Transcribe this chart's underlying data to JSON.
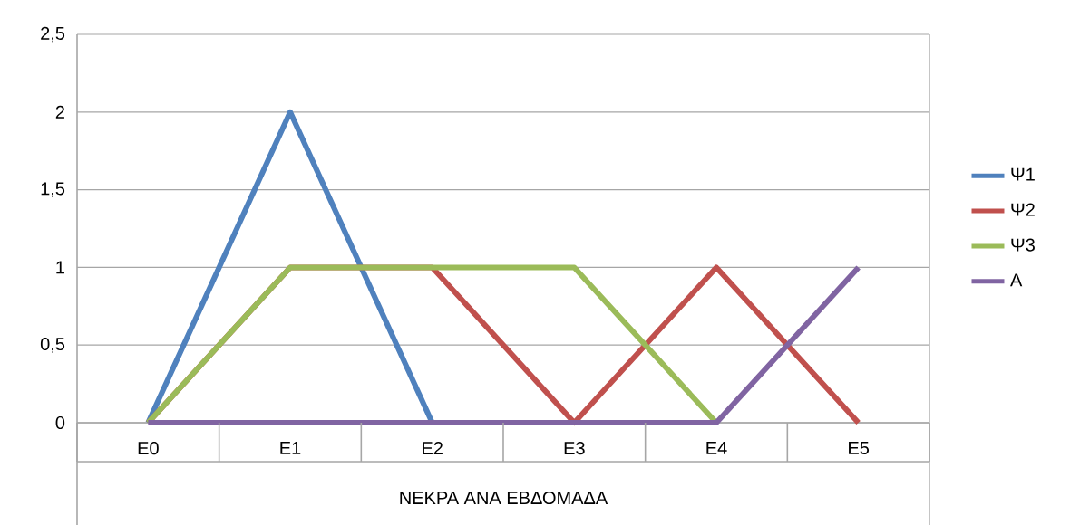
{
  "chart_data": {
    "type": "line",
    "xlabel": "ΝΕΚΡΑ ΑΝΑ ΕΒΔΟΜΑΔΑ",
    "categories": [
      "E0",
      "E1",
      "E2",
      "E3",
      "E4",
      "E5"
    ],
    "series": [
      {
        "name": "Ψ1",
        "color": "#4f81bd",
        "values": [
          0,
          2,
          0,
          null,
          null,
          null
        ]
      },
      {
        "name": "Ψ2",
        "color": "#c0504d",
        "values": [
          0,
          1,
          1,
          0,
          1,
          0
        ]
      },
      {
        "name": "Ψ3",
        "color": "#9bbb59",
        "values": [
          0,
          1,
          1,
          1,
          0,
          null
        ]
      },
      {
        "name": "A",
        "color": "#8064a2",
        "values": [
          0,
          0,
          0,
          0,
          0,
          1
        ]
      }
    ],
    "ylim": [
      0,
      2.5
    ],
    "yticks": [
      0,
      {
        "value": 0.5,
        "label": "0,5"
      },
      1,
      {
        "value": 1.5,
        "label": "1,5"
      },
      2,
      {
        "value": 2.5,
        "label": "2,5"
      }
    ],
    "grid": "y",
    "legend": "right",
    "marker": "none",
    "line_style": "solid"
  }
}
